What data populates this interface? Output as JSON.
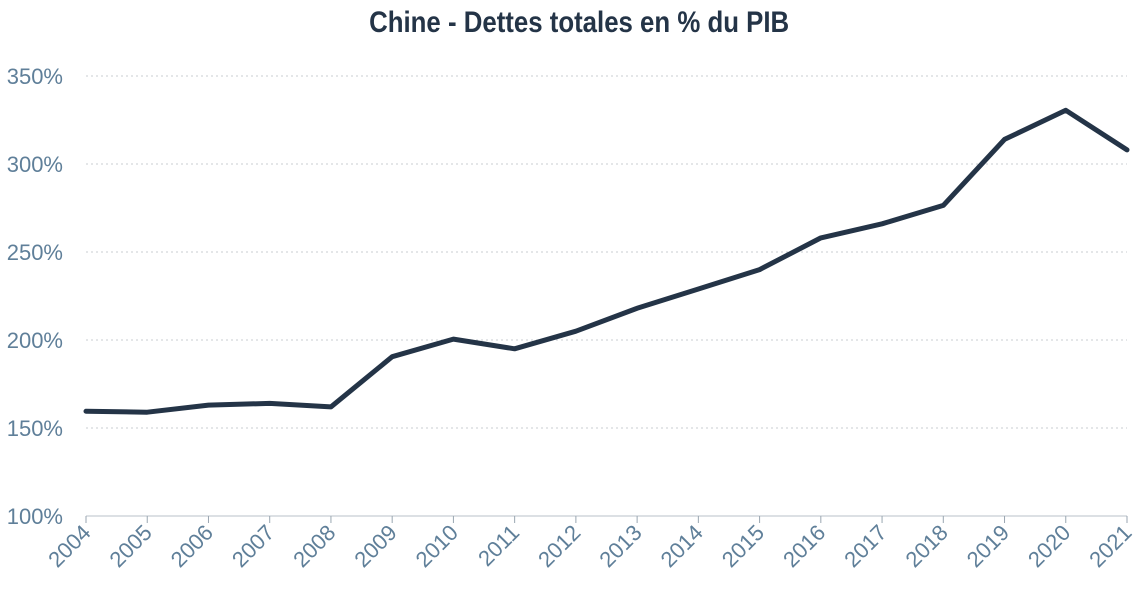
{
  "chart_data": {
    "type": "line",
    "title": "Chine - Dettes totales en % du PIB",
    "xlabel": "",
    "ylabel": "",
    "x": [
      "2004",
      "2005",
      "2006",
      "2007",
      "2008",
      "2009",
      "2010",
      "2011",
      "2012",
      "2013",
      "2014",
      "2015",
      "2016",
      "2017",
      "2018",
      "2019",
      "2020",
      "2021"
    ],
    "series": [
      {
        "values": [
          159.5,
          159,
          163,
          164,
          162,
          190.5,
          200.5,
          195,
          205,
          218,
          229,
          240,
          258,
          266,
          276.5,
          314,
          330.5,
          308
        ]
      }
    ],
    "yticks": [
      "100%",
      "150%",
      "200%",
      "250%",
      "300%",
      "350%"
    ],
    "ytick_values": [
      100,
      150,
      200,
      250,
      300,
      350
    ],
    "ylim": [
      100,
      350
    ],
    "grid": "horizontal-dotted",
    "legend": "none",
    "colors": {
      "line": "#243447",
      "tick_text": "#5f7f99",
      "grid": "#c8cdd2",
      "title": "#243447"
    }
  }
}
